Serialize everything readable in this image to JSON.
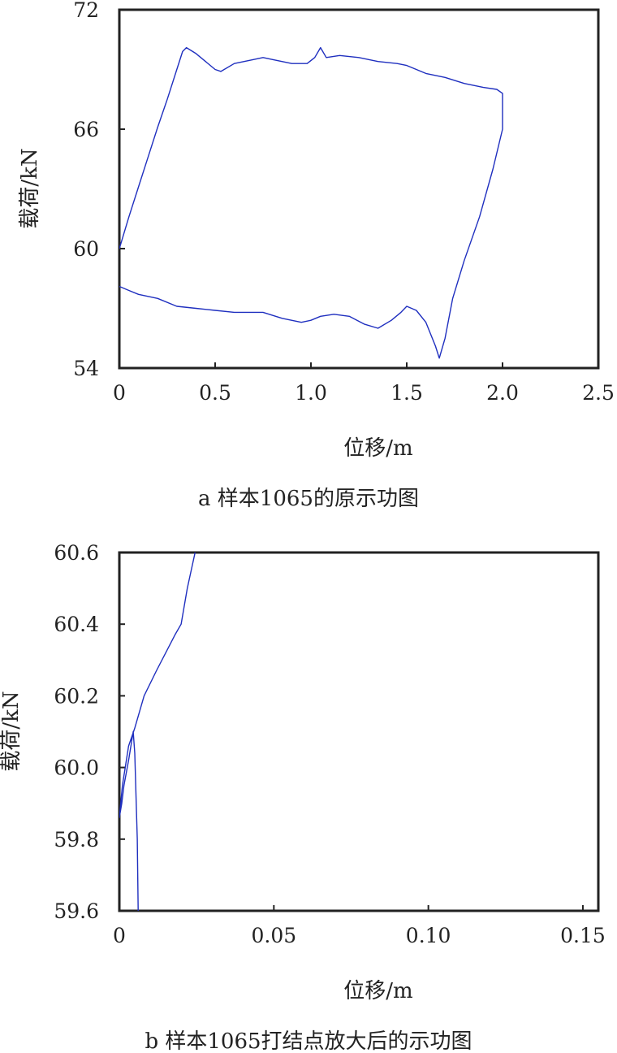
{
  "chart_data": [
    {
      "type": "line",
      "caption": "a 样本1065的原示功图",
      "xlabel": "位移/m",
      "ylabel": "载荷/kN",
      "xlim": [
        0,
        2.5
      ],
      "ylim": [
        54,
        72
      ],
      "x_ticks": [
        "0",
        "0.5",
        "1.0",
        "1.5",
        "2.0",
        "2.5"
      ],
      "x_tick_values": [
        0,
        0.5,
        1.0,
        1.5,
        2.0,
        2.5
      ],
      "y_ticks": [
        "54",
        "60",
        "66",
        "72"
      ],
      "y_tick_values": [
        54,
        60,
        66,
        72
      ],
      "grid": false,
      "line_color": "#1f2fbf",
      "series": [
        {
          "points": [
            [
              0.0,
              60.0
            ],
            [
              0.05,
              61.6
            ],
            [
              0.1,
              63.1
            ],
            [
              0.15,
              64.6
            ],
            [
              0.2,
              66.1
            ],
            [
              0.25,
              67.5
            ],
            [
              0.3,
              69.0
            ],
            [
              0.33,
              69.9
            ],
            [
              0.35,
              70.1
            ],
            [
              0.4,
              69.8
            ],
            [
              0.45,
              69.4
            ],
            [
              0.5,
              69.0
            ],
            [
              0.53,
              68.9
            ],
            [
              0.6,
              69.3
            ],
            [
              0.7,
              69.5
            ],
            [
              0.75,
              69.6
            ],
            [
              0.8,
              69.5
            ],
            [
              0.9,
              69.3
            ],
            [
              0.98,
              69.3
            ],
            [
              1.02,
              69.6
            ],
            [
              1.05,
              70.1
            ],
            [
              1.08,
              69.6
            ],
            [
              1.15,
              69.7
            ],
            [
              1.25,
              69.6
            ],
            [
              1.35,
              69.4
            ],
            [
              1.45,
              69.3
            ],
            [
              1.5,
              69.2
            ],
            [
              1.6,
              68.8
            ],
            [
              1.7,
              68.6
            ],
            [
              1.8,
              68.3
            ],
            [
              1.9,
              68.1
            ],
            [
              1.97,
              68.0
            ],
            [
              2.0,
              67.8
            ],
            [
              2.0,
              66.0
            ],
            [
              1.95,
              64.0
            ],
            [
              1.88,
              61.6
            ],
            [
              1.8,
              59.4
            ],
            [
              1.74,
              57.5
            ],
            [
              1.7,
              55.5
            ],
            [
              1.67,
              54.5
            ],
            [
              1.65,
              55.1
            ],
            [
              1.6,
              56.3
            ],
            [
              1.55,
              56.9
            ],
            [
              1.5,
              57.1
            ],
            [
              1.47,
              56.8
            ],
            [
              1.42,
              56.4
            ],
            [
              1.35,
              56.0
            ],
            [
              1.28,
              56.2
            ],
            [
              1.2,
              56.6
            ],
            [
              1.12,
              56.7
            ],
            [
              1.05,
              56.6
            ],
            [
              1.0,
              56.4
            ],
            [
              0.95,
              56.3
            ],
            [
              0.85,
              56.5
            ],
            [
              0.75,
              56.8
            ],
            [
              0.6,
              56.8
            ],
            [
              0.5,
              56.9
            ],
            [
              0.4,
              57.0
            ],
            [
              0.3,
              57.1
            ],
            [
              0.2,
              57.5
            ],
            [
              0.1,
              57.7
            ],
            [
              0.05,
              57.9
            ],
            [
              0.0,
              58.1
            ]
          ]
        }
      ]
    },
    {
      "type": "line",
      "caption": "b 样本1065打结点放大后的示功图",
      "xlabel": "位移/m",
      "ylabel": "载荷/kN",
      "xlim": [
        0,
        0.155
      ],
      "ylim": [
        59.6,
        60.6
      ],
      "x_ticks": [
        "0",
        "0.05",
        "0.10",
        "0.15"
      ],
      "x_tick_values": [
        0,
        0.05,
        0.1,
        0.15
      ],
      "y_ticks": [
        "59.6",
        "59.8",
        "60.0",
        "60.2",
        "60.4",
        "60.6"
      ],
      "y_tick_values": [
        59.6,
        59.8,
        60.0,
        60.2,
        60.4,
        60.6
      ],
      "grid": false,
      "line_color": "#1f2fbf",
      "series": [
        {
          "points": [
            [
              0.0061,
              59.6
            ],
            [
              0.0058,
              59.8
            ],
            [
              0.005,
              60.04
            ],
            [
              0.0045,
              60.1
            ],
            [
              0.003,
              60.02
            ],
            [
              0.0015,
              59.95
            ],
            [
              0.0008,
              59.9
            ],
            [
              0.0,
              59.86
            ],
            [
              0.001,
              59.95
            ],
            [
              0.003,
              60.06
            ],
            [
              0.005,
              60.11
            ],
            [
              0.008,
              60.2
            ],
            [
              0.012,
              60.27
            ],
            [
              0.018,
              60.37
            ],
            [
              0.02,
              60.4
            ],
            [
              0.022,
              60.5
            ],
            [
              0.0245,
              60.6
            ]
          ]
        }
      ]
    }
  ]
}
